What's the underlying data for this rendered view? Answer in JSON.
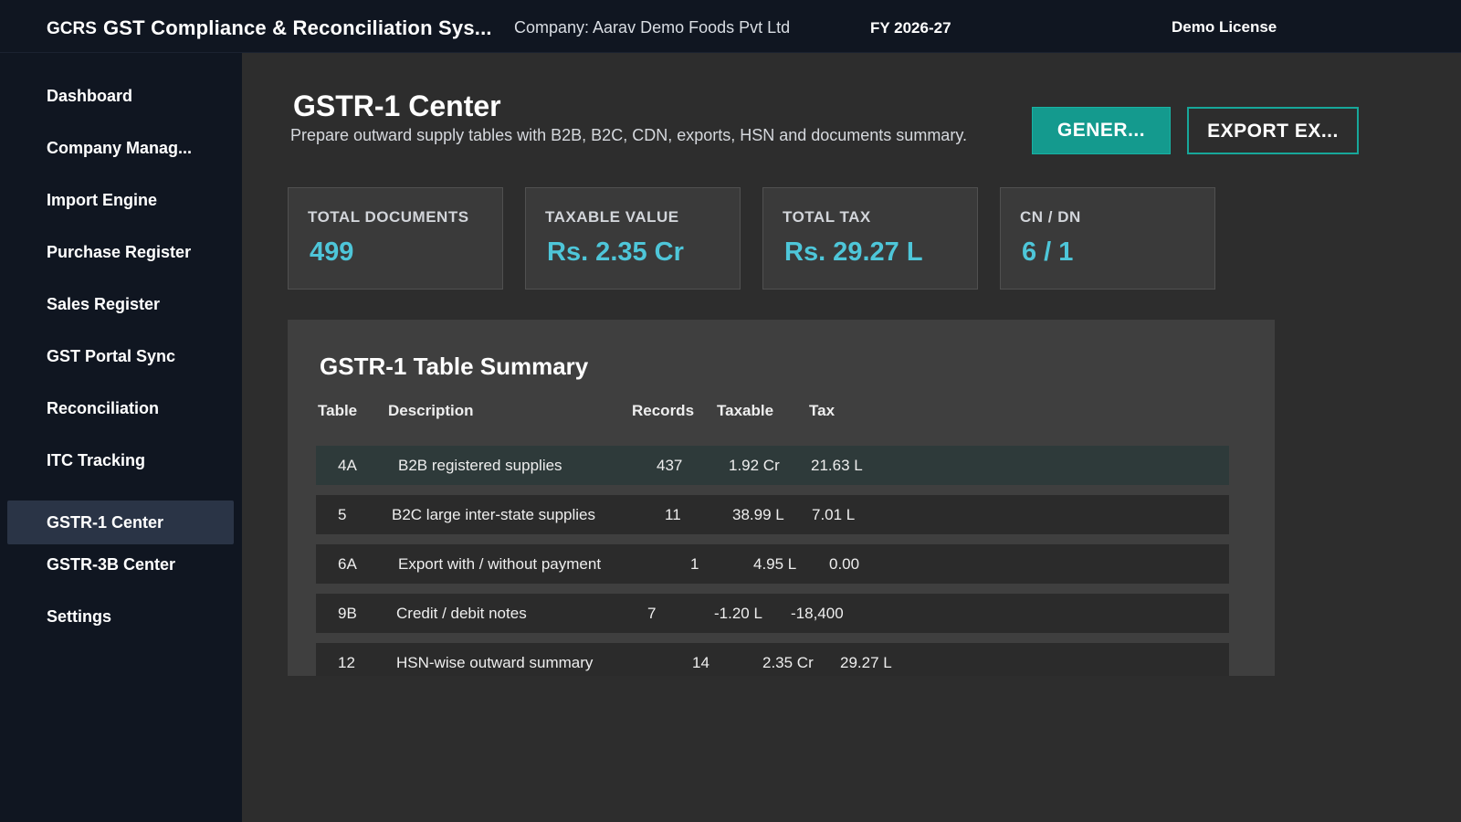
{
  "header": {
    "app_short": "GCRS",
    "app_title": "GST  Compliance  &  Reconciliation Sys...",
    "company": "Company: Aarav Demo Foods Pvt Ltd",
    "fiscal_year": "FY 2026-27",
    "license": "Demo License"
  },
  "sidebar": {
    "active_item": "GSTR-1 Center",
    "items": [
      {
        "label": "Dashboard"
      },
      {
        "label": "Company Manag..."
      },
      {
        "label": "Import Engine"
      },
      {
        "label": "Purchase Register"
      },
      {
        "label": "Sales Register"
      },
      {
        "label": "GST Portal Sync"
      },
      {
        "label": "Reconciliation"
      },
      {
        "label": "ITC Tracking"
      },
      {
        "label": "GSTR-1 Center"
      },
      {
        "label": "GSTR-3B Center"
      },
      {
        "label": "Settings"
      }
    ]
  },
  "page": {
    "title": "GSTR-1 Center",
    "subtitle": "Prepare outward supply tables with B2B, B2C, CDN, exports, HSN and documents summary.",
    "generate_label": "GENER...",
    "export_label": "EXPORT EX..."
  },
  "stats": [
    {
      "label": "TOTAL DOCUMENTS",
      "value": "499"
    },
    {
      "label": "TAXABLE VALUE",
      "value": "Rs. 2.35 Cr"
    },
    {
      "label": "TOTAL TAX",
      "value": "Rs. 29.27 L"
    },
    {
      "label": "CN / DN",
      "value": "6 / 1"
    }
  ],
  "summary": {
    "title": "GSTR-1 Table Summary",
    "columns": {
      "table": "Table",
      "description": "Description",
      "records": "Records",
      "taxable": "Taxable",
      "tax": "Tax"
    },
    "selected_row": "4A",
    "rows": [
      {
        "table": "4A",
        "description": "B2B registered supplies",
        "records": "437",
        "taxable": "1.92 Cr",
        "tax": "21.63 L"
      },
      {
        "table": "5",
        "description": "B2C large inter-state supplies",
        "records": "11",
        "taxable": "38.99 L",
        "tax": "7.01 L"
      },
      {
        "table": "6A",
        "description": "Export with / without payment",
        "records": "1",
        "taxable": "4.95 L",
        "tax": "0.00"
      },
      {
        "table": "9B",
        "description": "Credit / debit notes",
        "records": "7",
        "taxable": "-1.20 L",
        "tax": "-18,400"
      },
      {
        "table": "12",
        "description": "HSN-wise outward summary",
        "records": "14",
        "taxable": "2.35 Cr",
        "tax": "29.27 L"
      }
    ]
  },
  "colors": {
    "accent": "#149a8e",
    "value_text": "#4ec6d9",
    "sidebar_bg": "#101621",
    "main_bg": "#2d2d2d"
  }
}
